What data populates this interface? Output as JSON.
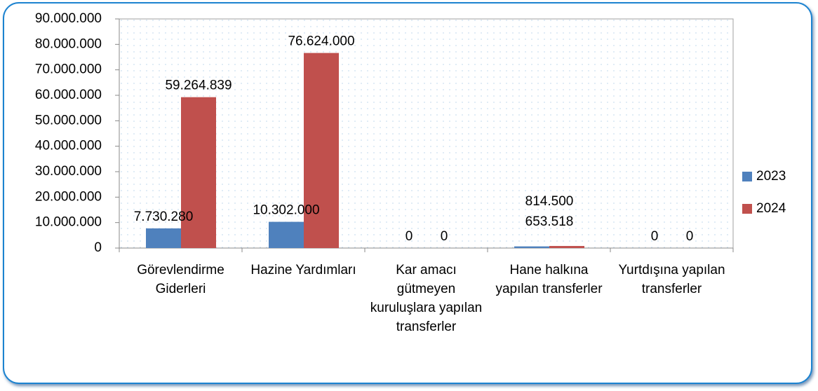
{
  "chart_data": {
    "type": "bar",
    "categories": [
      "Görevlendirme Giderleri",
      "Hazine Yardımları",
      "Kar amacı gütmeyen kuruluşlara yapılan transferler",
      "Hane halkına yapılan transferler",
      "Yurtdışına yapılan transferler"
    ],
    "series": [
      {
        "name": "2023",
        "color": "#4f81bd",
        "values": [
          7730280,
          10302000,
          0,
          653518,
          0
        ],
        "value_labels": [
          "7.730.280",
          "10.302.000",
          "0",
          "653.518",
          "0"
        ]
      },
      {
        "name": "2024",
        "color": "#c0504d",
        "values": [
          59264839,
          76624000,
          0,
          814500,
          0
        ],
        "value_labels": [
          "59.264.839",
          "76.624.000",
          "0",
          "814.500",
          "0"
        ]
      }
    ],
    "ylim": [
      0,
      90000000
    ],
    "yticks": [
      0,
      {
        "value": 10000000,
        "label": "10.000.000"
      },
      {
        "value": 20000000,
        "label": "20.000.000"
      },
      {
        "value": 30000000,
        "label": "30.000.000"
      },
      {
        "value": 40000000,
        "label": "40.000.000"
      },
      {
        "value": 50000000,
        "label": "50.000.000"
      },
      {
        "value": 60000000,
        "label": "60.000.000"
      },
      {
        "value": 70000000,
        "label": "70.000.000"
      },
      {
        "value": 80000000,
        "label": "80.000.000"
      },
      {
        "value": 90000000,
        "label": "90.000.000"
      }
    ],
    "grid": false,
    "legend": "right"
  }
}
